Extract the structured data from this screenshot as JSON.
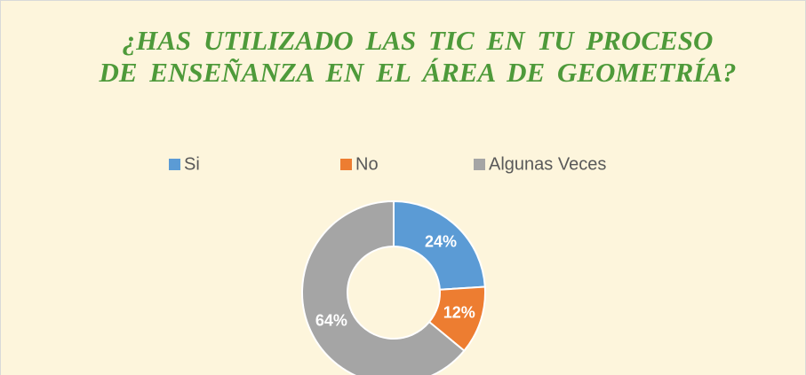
{
  "chart_data": {
    "type": "pie",
    "title": "¿HAS UTILIZADO LAS TIC EN TU PROCESO DE ENSEÑANZA EN EL ÁREA DE GEOMETRÍA?",
    "categories": [
      "Si",
      "No",
      "Algunas Veces"
    ],
    "values": [
      24,
      12,
      64
    ],
    "value_labels": [
      "24%",
      "12%",
      "64%"
    ],
    "colors": [
      "#5b9bd5",
      "#ed7d31",
      "#a5a5a5"
    ],
    "legend": "top"
  }
}
